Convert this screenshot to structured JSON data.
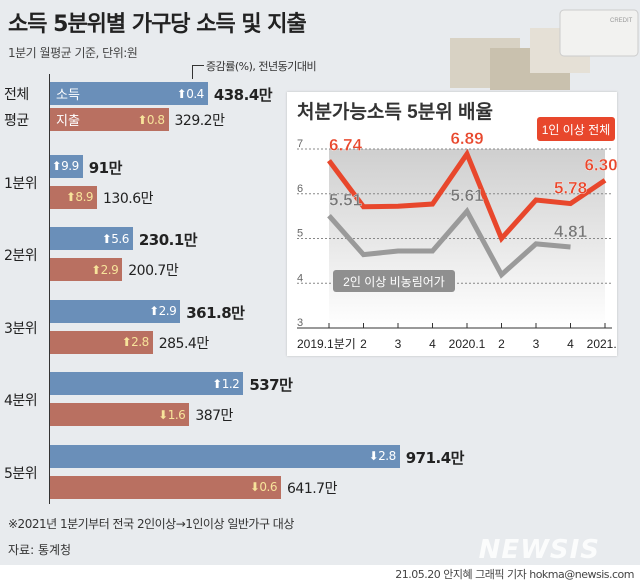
{
  "title": "소득 5분위별 가구당 소득 및 지출",
  "subtitle": "1분기 월평균 기준, 단위:원",
  "change_note": "증감률(%), 전년동기대비",
  "colors": {
    "income": "#6a8fb9",
    "expense": "#b97061",
    "line_all": "#e8472c",
    "line_2p": "#9a9a9a"
  },
  "chart_data": [
    {
      "type": "bar",
      "orientation": "horizontal",
      "unit": "원",
      "series_labels": {
        "income": "소득",
        "expense": "지출"
      },
      "groups": [
        {
          "label": "전체 평균",
          "label_lines": [
            "전체",
            "평균"
          ],
          "income": 438.4,
          "income_label": "438.4만",
          "income_change": "0.4",
          "income_dir": "up",
          "expense": 329.2,
          "expense_label": "329.2만",
          "expense_change": "0.8",
          "expense_dir": "up"
        },
        {
          "label": "1분위",
          "label_lines": [
            "1분위"
          ],
          "income": 91,
          "income_label": "91만",
          "income_change": "9.9",
          "income_dir": "up",
          "expense": 130.6,
          "expense_label": "130.6만",
          "expense_change": "8.9",
          "expense_dir": "up"
        },
        {
          "label": "2분위",
          "label_lines": [
            "2분위"
          ],
          "income": 230.1,
          "income_label": "230.1만",
          "income_change": "5.6",
          "income_dir": "up",
          "expense": 200.7,
          "expense_label": "200.7만",
          "expense_change": "2.9",
          "expense_dir": "up"
        },
        {
          "label": "3분위",
          "label_lines": [
            "3분위"
          ],
          "income": 361.8,
          "income_label": "361.8만",
          "income_change": "2.9",
          "income_dir": "up",
          "expense": 285.4,
          "expense_label": "285.4만",
          "expense_change": "2.8",
          "expense_dir": "up"
        },
        {
          "label": "4분위",
          "label_lines": [
            "4분위"
          ],
          "income": 537,
          "income_label": "537만",
          "income_change": "1.2",
          "income_dir": "up",
          "expense": 387,
          "expense_label": "387만",
          "expense_change": "1.6",
          "expense_dir": "down"
        },
        {
          "label": "5분위",
          "label_lines": [
            "5분위"
          ],
          "income": 971.4,
          "income_label": "971.4만",
          "income_change": "2.8",
          "income_dir": "down",
          "expense": 641.7,
          "expense_label": "641.7만",
          "expense_change": "0.6",
          "expense_dir": "down"
        }
      ]
    },
    {
      "type": "line",
      "title": "처분가능소득 5분위 배율",
      "categories": [
        "2019.1분기",
        "2",
        "3",
        "4",
        "2020.1",
        "2",
        "3",
        "4",
        "2021.1"
      ],
      "ylim": [
        3,
        7
      ],
      "yticks": [
        "3",
        "4",
        "5",
        "6",
        "7"
      ],
      "grid": true,
      "series": [
        {
          "name": "1인 이상 전체",
          "values": [
            6.74,
            5.71,
            5.72,
            5.77,
            6.89,
            5.0,
            5.86,
            5.78,
            6.3
          ],
          "labels": [
            "6.74",
            "",
            "",
            "",
            "6.89",
            "",
            "",
            "5.78",
            "6.30"
          ]
        },
        {
          "name": "2인 이상 비농림어가",
          "values": [
            5.51,
            4.64,
            4.72,
            4.72,
            5.61,
            4.19,
            4.88,
            4.81,
            null
          ],
          "labels": [
            "5.51",
            "",
            "",
            "",
            "5.61",
            "",
            "",
            "4.81",
            ""
          ]
        }
      ]
    }
  ],
  "footnote": "※2021년 1분기부터 전국 2인이상→1인이상 일반가구 대상",
  "source": "자료: 통계청",
  "credit": "21.05.20 안지혜 그래픽 기자 hokma@newsis.com",
  "logo": "NEWSIS"
}
